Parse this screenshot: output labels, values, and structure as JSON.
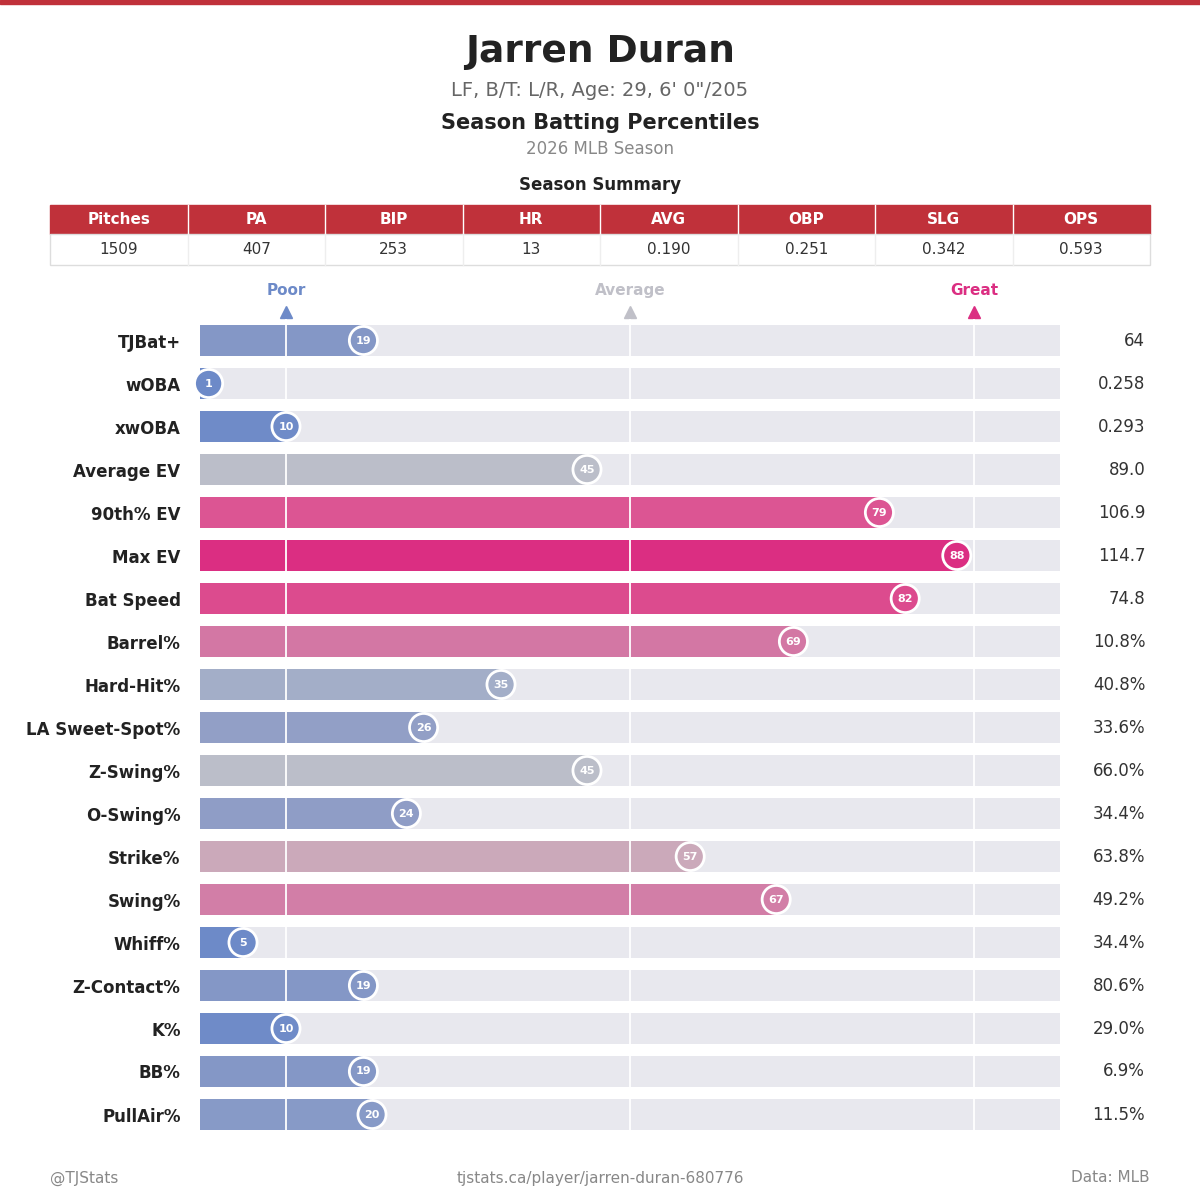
{
  "header": {
    "title": "Jarren Duran",
    "subtitle": "LF, B/T: L/R, Age: 29, 6' 0\"/205",
    "heading": "Season Batting Percentiles",
    "season": "2026 MLB Season"
  },
  "summary": {
    "title": "Season Summary",
    "columns": [
      "Pitches",
      "PA",
      "BIP",
      "HR",
      "AVG",
      "OBP",
      "SLG",
      "OPS"
    ],
    "values": [
      "1509",
      "407",
      "253",
      "13",
      "0.190",
      "0.251",
      "0.342",
      "0.593"
    ]
  },
  "chart_data": {
    "type": "bar",
    "orientation": "horizontal",
    "categories": [
      "TJBat+",
      "wOBA",
      "xwOBA",
      "Average EV",
      "90th% EV",
      "Max EV",
      "Bat Speed",
      "Barrel%",
      "Hard-Hit%",
      "LA Sweet-Spot%",
      "Z-Swing%",
      "O-Swing%",
      "Strike%",
      "Swing%",
      "Whiff%",
      "Z-Contact%",
      "K%",
      "BB%",
      "PullAir%"
    ],
    "values": [
      19,
      1,
      10,
      45,
      79,
      88,
      82,
      69,
      35,
      26,
      45,
      24,
      57,
      67,
      5,
      19,
      10,
      19,
      20
    ],
    "stat_values": [
      "64",
      "0.258",
      "0.293",
      "89.0",
      "106.9",
      "114.7",
      "74.8",
      "10.8%",
      "40.8%",
      "33.6%",
      "66.0%",
      "34.4%",
      "63.8%",
      "49.2%",
      "34.4%",
      "80.6%",
      "29.0%",
      "6.9%",
      "11.5%"
    ],
    "colors": [
      "#8497c6",
      "#6d8ac8",
      "#6f8bc8",
      "#bbbec9",
      "#dc5593",
      "#db2e82",
      "#dc4b8e",
      "#d377a4",
      "#a3aec8",
      "#929fc6",
      "#bbbec9",
      "#8f9dc6",
      "#cba9ba",
      "#d27ea7",
      "#6d8ac8",
      "#8497c6",
      "#6f8bc8",
      "#8497c6",
      "#879ac7"
    ],
    "reference_lines": [
      {
        "value": 10,
        "label": "Poor"
      },
      {
        "value": 50,
        "label": "Average"
      },
      {
        "value": 90,
        "label": "Great"
      }
    ],
    "xlim": [
      0,
      100
    ],
    "data_labels": true,
    "tick_labels": "y"
  },
  "footer": {
    "left": "@TJStats",
    "center": "tjstats.ca/player/jarren-duran-680776",
    "right": "Data: MLB"
  }
}
